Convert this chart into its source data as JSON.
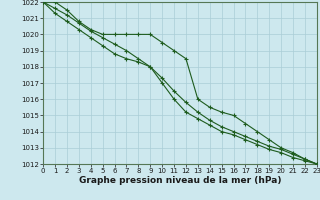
{
  "background_color": "#cde8ee",
  "grid_color": "#aacdd6",
  "line_color": "#1e5c1e",
  "x_min": 0,
  "x_max": 23,
  "y_min": 1012,
  "y_max": 1022,
  "xlabel": "Graphe pression niveau de la mer (hPa)",
  "xlabel_fontsize": 6.5,
  "tick_fontsize": 5.0,
  "series": [
    {
      "x": [
        0,
        1,
        2,
        3,
        4,
        5,
        6,
        7,
        8,
        9,
        10,
        11,
        12,
        13,
        14,
        15,
        16,
        17,
        18,
        19,
        20,
        21,
        22,
        23
      ],
      "y": [
        1022,
        1022,
        1021.5,
        1020.8,
        1020.3,
        1020.0,
        1020.0,
        1020.0,
        1020.0,
        1020.0,
        1019.5,
        1019.0,
        1018.5,
        1016.0,
        1015.5,
        1015.2,
        1015.0,
        1014.5,
        1014.0,
        1013.5,
        1013.0,
        1012.7,
        1012.3,
        1012.0
      ]
    },
    {
      "x": [
        0,
        1,
        2,
        3,
        4,
        5,
        6,
        7,
        8,
        9,
        10,
        11,
        12,
        13,
        14,
        15,
        16,
        17,
        18,
        19,
        20,
        21,
        22,
        23
      ],
      "y": [
        1022,
        1021.6,
        1021.2,
        1020.7,
        1020.2,
        1019.8,
        1019.4,
        1019.0,
        1018.5,
        1018.0,
        1017.3,
        1016.5,
        1015.8,
        1015.2,
        1014.7,
        1014.3,
        1014.0,
        1013.7,
        1013.4,
        1013.1,
        1012.9,
        1012.6,
        1012.3,
        1012.0
      ]
    },
    {
      "x": [
        0,
        1,
        2,
        3,
        4,
        5,
        6,
        7,
        8,
        9,
        10,
        11,
        12,
        13,
        14,
        15,
        16,
        17,
        18,
        19,
        20,
        21,
        22,
        23
      ],
      "y": [
        1022,
        1021.3,
        1020.8,
        1020.3,
        1019.8,
        1019.3,
        1018.8,
        1018.5,
        1018.3,
        1018.0,
        1017.0,
        1016.0,
        1015.2,
        1014.8,
        1014.4,
        1014.0,
        1013.8,
        1013.5,
        1013.2,
        1012.9,
        1012.7,
        1012.4,
        1012.2,
        1012.0
      ]
    }
  ]
}
